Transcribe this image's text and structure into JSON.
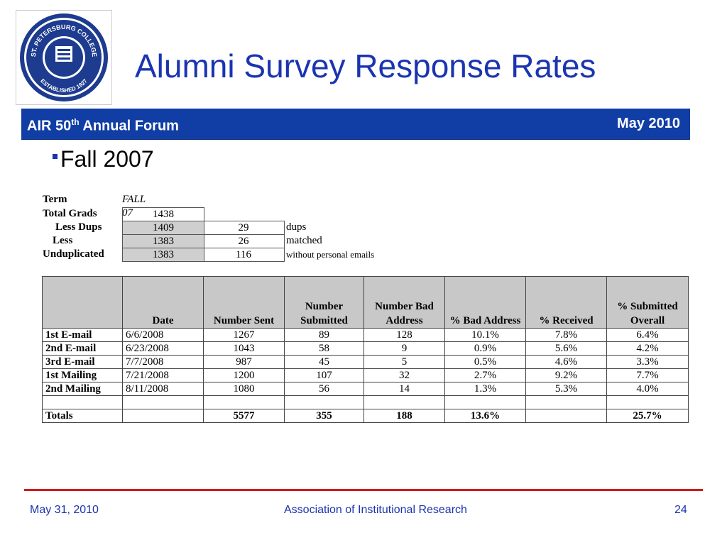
{
  "logo": {
    "text_top": "ST. PETERSBURG COLLEGE",
    "text_bottom": "ESTABLISHED 1927"
  },
  "title": "Alumni Survey Response Rates",
  "banner": {
    "left_main": "AIR 50",
    "left_sup": "th",
    "left_rest": " Annual Forum",
    "right": "May 2010"
  },
  "bullet": "Fall 2007",
  "summary": {
    "term_label": "Term",
    "term_value": "FALL 07",
    "rows": [
      {
        "label": "Total Grads",
        "value": "1438",
        "count": "",
        "note": ""
      },
      {
        "label": "Less Dups",
        "value": "1409",
        "count": "29",
        "note": "dups"
      },
      {
        "label": "Less",
        "value": "1383",
        "count": "26",
        "note": "matched"
      },
      {
        "label": "Unduplicated",
        "value": "1383",
        "count": "116",
        "note": "without personal emails"
      }
    ]
  },
  "table": {
    "headers": [
      "",
      "Date",
      "Number Sent",
      "Number Submitted",
      "Number Bad Address",
      "% Bad Address",
      "% Received",
      "% Submitted Overall"
    ],
    "rows": [
      [
        "1st E-mail",
        "6/6/2008",
        "1267",
        "89",
        "128",
        "10.1%",
        "7.8%",
        "6.4%"
      ],
      [
        "2nd E-mail",
        "6/23/2008",
        "1043",
        "58",
        "9",
        "0.9%",
        "5.6%",
        "4.2%"
      ],
      [
        "3rd E-mail",
        "7/7/2008",
        "987",
        "45",
        "5",
        "0.5%",
        "4.6%",
        "3.3%"
      ],
      [
        "1st Mailing",
        "7/21/2008",
        "1200",
        "107",
        "32",
        "2.7%",
        "9.2%",
        "7.7%"
      ],
      [
        "2nd Mailing",
        "8/11/2008",
        "1080",
        "56",
        "14",
        "1.3%",
        "5.3%",
        "4.0%"
      ]
    ],
    "totals": [
      "Totals",
      "",
      "5577",
      "355",
      "188",
      "13.6%",
      "",
      "25.7%"
    ]
  },
  "footer": {
    "date": "May 31, 2010",
    "org": "Association of Institutional Research",
    "page": "24"
  }
}
